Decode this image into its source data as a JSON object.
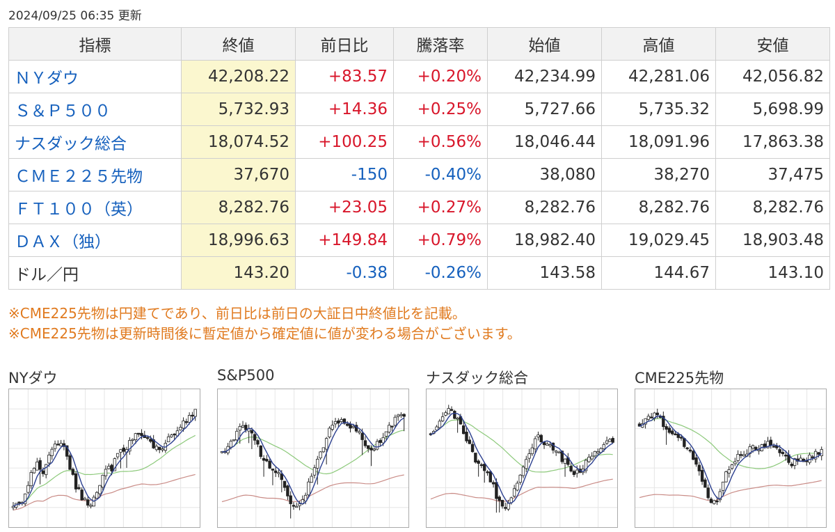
{
  "updated": "2024/09/25 06:35 更新",
  "columns": [
    "指標",
    "終値",
    "前日比",
    "騰落率",
    "始値",
    "高値",
    "安値"
  ],
  "rows": [
    {
      "name": "ＮＹダウ",
      "close": "42,208.22",
      "change": "+83.57",
      "pct": "+0.20%",
      "open": "42,234.99",
      "high": "42,281.06",
      "low": "42,056.82",
      "dir": "pos",
      "link": true
    },
    {
      "name": "Ｓ＆Ｐ５００",
      "close": "5,732.93",
      "change": "+14.36",
      "pct": "+0.25%",
      "open": "5,727.66",
      "high": "5,735.32",
      "low": "5,698.99",
      "dir": "pos",
      "link": true
    },
    {
      "name": "ナスダック総合",
      "close": "18,074.52",
      "change": "+100.25",
      "pct": "+0.56%",
      "open": "18,046.44",
      "high": "18,091.96",
      "low": "17,863.38",
      "dir": "pos",
      "link": true
    },
    {
      "name": "ＣＭＥ２２５先物",
      "close": "37,670",
      "change": "-150",
      "pct": "-0.40%",
      "open": "38,080",
      "high": "38,270",
      "low": "37,475",
      "dir": "neg",
      "link": true
    },
    {
      "name": "ＦＴ１００（英）",
      "close": "8,282.76",
      "change": "+23.05",
      "pct": "+0.27%",
      "open": "8,282.76",
      "high": "8,282.76",
      "low": "8,282.76",
      "dir": "pos",
      "link": true
    },
    {
      "name": "ＤＡＸ（独）",
      "close": "18,996.63",
      "change": "+149.84",
      "pct": "+0.79%",
      "open": "18,982.40",
      "high": "19,029.45",
      "low": "18,903.48",
      "dir": "pos",
      "link": true
    },
    {
      "name": "ドル／円",
      "close": "143.20",
      "change": "-0.38",
      "pct": "-0.26%",
      "open": "143.58",
      "high": "144.67",
      "low": "143.10",
      "dir": "neg",
      "link": false
    }
  ],
  "notes": [
    "※CME225先物は円建てであり、前日比は前日の大証日中終値比を記載。",
    "※CME225先物は更新時間後に暫定値から確定値に値が変わる場合がございます。"
  ],
  "colors": {
    "up": "#d8162a",
    "down": "#1560bd",
    "note": "#e07a1f",
    "close_bg": "#fbf7cf",
    "ma_short": "#2b3f8f",
    "ma_mid": "#8cc97a",
    "ma_long": "#c98b86"
  },
  "charts": [
    {
      "title": "NYダウ",
      "trend": [
        0.08,
        0.12,
        0.3,
        0.45,
        0.38,
        0.58,
        0.62,
        0.55,
        0.3,
        0.18,
        0.1,
        0.2,
        0.38,
        0.42,
        0.55,
        0.6,
        0.68,
        0.72,
        0.62,
        0.58,
        0.62,
        0.7,
        0.78,
        0.84,
        0.9
      ]
    },
    {
      "title": "S&P500",
      "trend": [
        0.55,
        0.62,
        0.72,
        0.78,
        0.7,
        0.55,
        0.45,
        0.4,
        0.3,
        0.12,
        0.06,
        0.2,
        0.38,
        0.55,
        0.72,
        0.8,
        0.82,
        0.78,
        0.72,
        0.62,
        0.58,
        0.66,
        0.76,
        0.84,
        0.88
      ]
    },
    {
      "title": "ナスダック総合",
      "trend": [
        0.7,
        0.82,
        0.9,
        0.88,
        0.75,
        0.62,
        0.48,
        0.42,
        0.3,
        0.12,
        0.08,
        0.22,
        0.4,
        0.56,
        0.68,
        0.62,
        0.58,
        0.52,
        0.45,
        0.36,
        0.42,
        0.5,
        0.56,
        0.62,
        0.64
      ]
    },
    {
      "title": "CME225先物",
      "trend": [
        0.78,
        0.84,
        0.86,
        0.8,
        0.72,
        0.68,
        0.6,
        0.52,
        0.35,
        0.18,
        0.1,
        0.3,
        0.45,
        0.52,
        0.56,
        0.58,
        0.6,
        0.62,
        0.6,
        0.52,
        0.46,
        0.48,
        0.5,
        0.52,
        0.56
      ]
    }
  ]
}
